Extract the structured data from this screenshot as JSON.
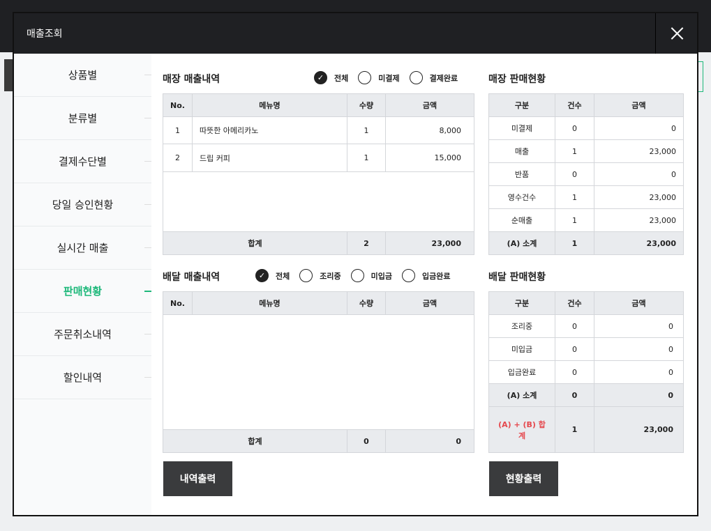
{
  "modal": {
    "title": "매출조회"
  },
  "sidebar": {
    "items": [
      {
        "label": "상품별"
      },
      {
        "label": "분류별"
      },
      {
        "label": "결제수단별"
      },
      {
        "label": "당일 승인현황"
      },
      {
        "label": "실시간 매출"
      },
      {
        "label": "판매현황",
        "active": true
      },
      {
        "label": "주문취소내역"
      },
      {
        "label": "할인내역"
      }
    ]
  },
  "accent": "#1db87a",
  "store": {
    "title": "매장 매출내역",
    "filters": [
      {
        "label": "전체",
        "checked": true
      },
      {
        "label": "미결제",
        "checked": false
      },
      {
        "label": "결제완료",
        "checked": false
      }
    ],
    "columns": [
      "No.",
      "메뉴명",
      "수량",
      "금액"
    ],
    "rows": [
      [
        "1",
        "따뜻한 아메리카노",
        "1",
        "8,000"
      ],
      [
        "2",
        "드립 커피",
        "1",
        "15,000"
      ]
    ],
    "total": {
      "label": "합계",
      "qty": "2",
      "amount": "23,000"
    }
  },
  "store_summary": {
    "title": "매장 판매현황",
    "columns": [
      "구분",
      "건수",
      "금액"
    ],
    "rows": [
      [
        "미결제",
        "0",
        "0"
      ],
      [
        "매출",
        "1",
        "23,000"
      ],
      [
        "반품",
        "0",
        "0"
      ],
      [
        "영수건수",
        "1",
        "23,000"
      ],
      [
        "순매출",
        "1",
        "23,000"
      ]
    ],
    "subtotal": [
      "(A) 소계",
      "1",
      "23,000"
    ]
  },
  "delivery": {
    "title": "배달 매출내역",
    "filters": [
      {
        "label": "전체",
        "checked": true
      },
      {
        "label": "조리중",
        "checked": false
      },
      {
        "label": "미입금",
        "checked": false
      },
      {
        "label": "입금완료",
        "checked": false
      }
    ],
    "columns": [
      "No.",
      "메뉴명",
      "수량",
      "금액"
    ],
    "total": {
      "label": "합계",
      "qty": "0",
      "amount": "0"
    }
  },
  "delivery_summary": {
    "title": "배달 판매현황",
    "columns": [
      "구분",
      "건수",
      "금액"
    ],
    "rows": [
      [
        "조리중",
        "0",
        "0"
      ],
      [
        "미입금",
        "0",
        "0"
      ],
      [
        "입금완료",
        "0",
        "0"
      ]
    ],
    "subtotal": [
      "(A) 소계",
      "0",
      "0"
    ],
    "grand": [
      "(A) + (B) 합계",
      "1",
      "23,000"
    ]
  },
  "buttons": {
    "print_list": "내역출력",
    "print_status": "현황출력"
  }
}
